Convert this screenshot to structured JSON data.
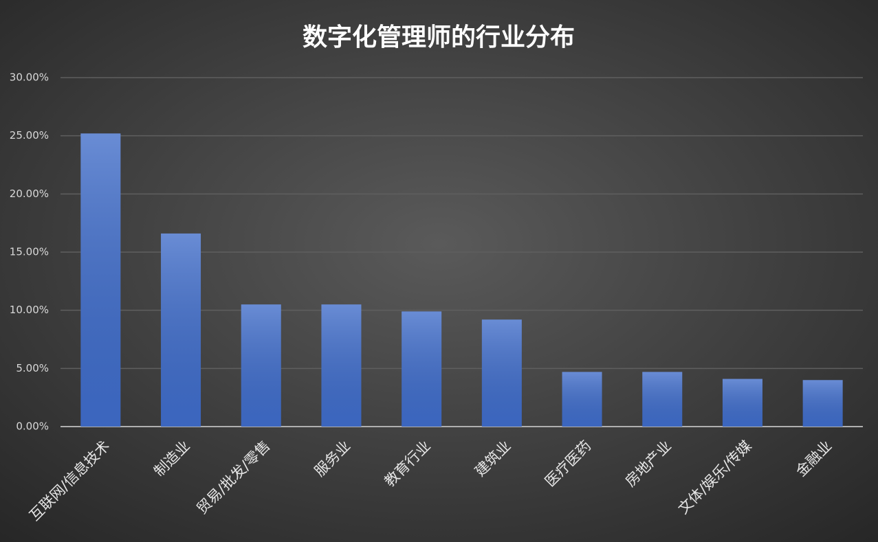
{
  "chart_data": {
    "type": "bar",
    "title": "数字化管理师的行业分布",
    "categories": [
      "互联网/信息技术",
      "制造业",
      "贸易/批发/零售",
      "服务业",
      "教育行业",
      "建筑业",
      "医疗医药",
      "房地产业",
      "文体/娱乐/传媒",
      "金融业"
    ],
    "values": [
      25.2,
      16.6,
      10.5,
      10.5,
      9.9,
      9.2,
      4.7,
      4.7,
      4.1,
      4.0
    ],
    "color": "#3f6cc9",
    "ylim": [
      0,
      30
    ],
    "yticks": [
      {
        "value": 0,
        "label": "0.00%"
      },
      {
        "value": 5,
        "label": "5.00%"
      },
      {
        "value": 10,
        "label": "10.00%"
      },
      {
        "value": 15,
        "label": "15.00%"
      },
      {
        "value": 20,
        "label": "20.00%"
      },
      {
        "value": 25,
        "label": "25.00%"
      },
      {
        "value": 30,
        "label": "30.00%"
      }
    ],
    "grid": true
  }
}
